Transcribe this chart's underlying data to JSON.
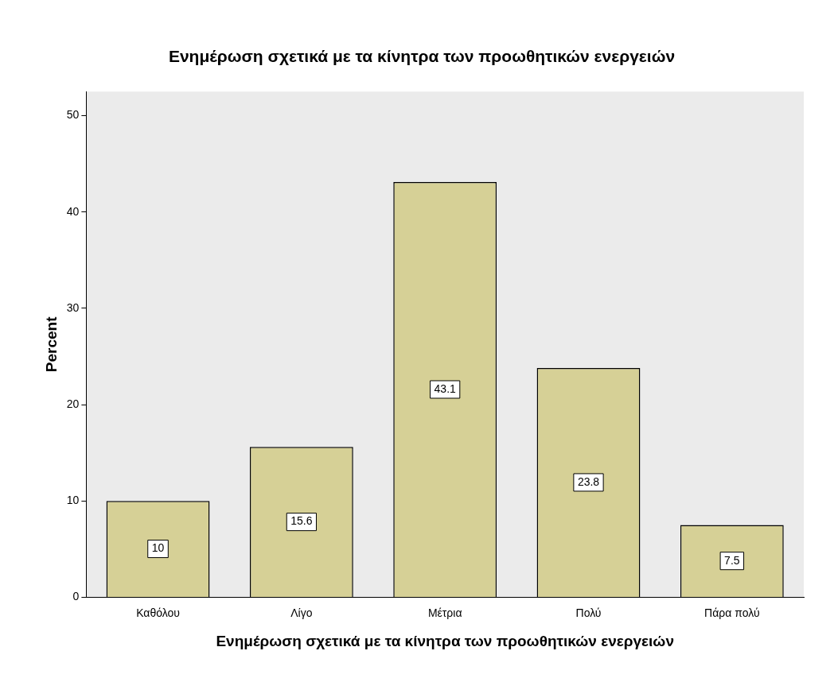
{
  "chart_data": {
    "type": "bar",
    "title": "Ενημέρωση σχετικά με τα κίνητρα των προωθητικών ενεργειών",
    "xlabel": "Ενημέρωση σχετικά με τα κίνητρα των προωθητικών ενεργειών",
    "ylabel": "Percent",
    "categories": [
      "Καθόλου",
      "Λίγο",
      "Μέτρια",
      "Πολύ",
      "Πάρα πολύ"
    ],
    "values": [
      10,
      15.6,
      43.1,
      23.8,
      7.5
    ],
    "color": "#d6d096",
    "ylim": [
      0,
      52.5
    ],
    "yticks": [
      0,
      10,
      20,
      30,
      40,
      50
    ],
    "grid": false,
    "legend": false,
    "data_labels": true
  }
}
